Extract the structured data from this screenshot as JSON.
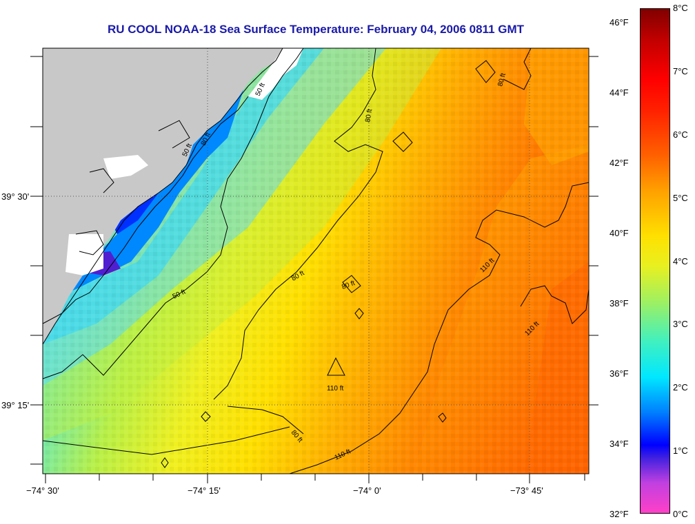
{
  "title": "RU COOL  NOAA-18  Sea Surface Temperature:  February 04, 2006 0811 GMT",
  "lat_labels": [
    "39° 30'",
    "39° 15'"
  ],
  "lon_labels": [
    "−74° 30'",
    "−74° 15'",
    "−74° 0'",
    "−73° 45'"
  ],
  "contour_labels": [
    "50 ft",
    "50 ft",
    "50 ft",
    "80 ft",
    "80 ft",
    "80 ft",
    "80 ft",
    "80 ft",
    "110 ft",
    "110 ft",
    "110 ft",
    "110 ft"
  ],
  "colorbar": {
    "fahrenheit": [
      "46°F",
      "44°F",
      "42°F",
      "40°F",
      "38°F",
      "36°F",
      "34°F",
      "32°F"
    ],
    "celsius": [
      "8°C",
      "7°C",
      "6°C",
      "5°C",
      "4°C",
      "3°C",
      "2°C",
      "1°C",
      "0°C"
    ]
  },
  "colors": {
    "land": "#c8c8c8",
    "cloud_mask": "#ffffff",
    "title": "#1a1aa8",
    "contour": "#000000"
  }
}
